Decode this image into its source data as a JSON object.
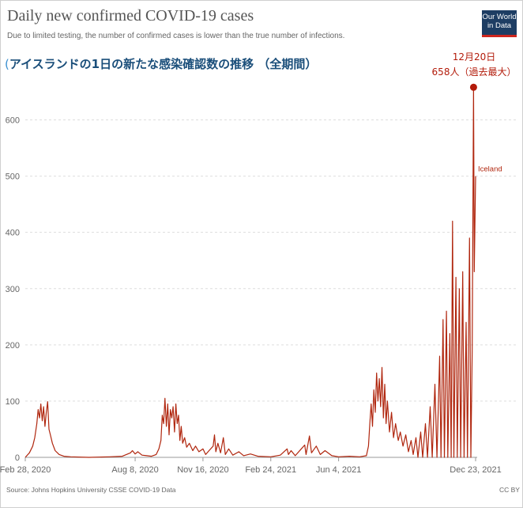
{
  "header": {
    "title": "Daily new confirmed COVID-19 cases",
    "subtitle": "Due to limited testing, the number of confirmed cases is lower than the true number of infections.",
    "logo_line1": "Our World",
    "logo_line2": "in Data"
  },
  "annotation_title": {
    "paren": "(",
    "text": "アイスランドの1日の新たな感染確認数の推移 （全期間）"
  },
  "peak_callout": {
    "date": "12月20日",
    "value": "658人（過去最大）"
  },
  "footer": {
    "source": "Source: Johns Hopkins University CSSE COVID-19 Data",
    "license": "CC BY"
  },
  "colors": {
    "series": "#b0260e",
    "grid": "#dddddd",
    "axis_text": "#666666",
    "annotation": "#b31b0a"
  },
  "chart_data": {
    "type": "line",
    "title": "Daily new confirmed COVID-19 cases",
    "xlabel": "",
    "ylabel": "",
    "ylim": [
      0,
      650
    ],
    "yticks": [
      0,
      100,
      200,
      300,
      400,
      500,
      600
    ],
    "xticks": [
      "Feb 28, 2020",
      "Aug 8, 2020",
      "Nov 16, 2020",
      "Feb 24, 2021",
      "Jun 4, 2021",
      "Dec 23, 2021"
    ],
    "grid": true,
    "series": [
      {
        "name": "Iceland",
        "color": "#b0260e",
        "points": [
          [
            "Feb 28, 2020",
            0
          ],
          [
            "Mar 5, 2020",
            8
          ],
          [
            "Mar 10, 2020",
            20
          ],
          [
            "Mar 13, 2020",
            35
          ],
          [
            "Mar 16, 2020",
            60
          ],
          [
            "Mar 18, 2020",
            85
          ],
          [
            "Mar 20, 2020",
            70
          ],
          [
            "Mar 22, 2020",
            95
          ],
          [
            "Mar 24, 2020",
            65
          ],
          [
            "Mar 26, 2020",
            90
          ],
          [
            "Mar 28, 2020",
            55
          ],
          [
            "Mar 30, 2020",
            80
          ],
          [
            "Apr 1, 2020",
            99
          ],
          [
            "Apr 3, 2020",
            50
          ],
          [
            "Apr 5, 2020",
            40
          ],
          [
            "Apr 8, 2020",
            25
          ],
          [
            "Apr 12, 2020",
            12
          ],
          [
            "Apr 18, 2020",
            5
          ],
          [
            "Apr 25, 2020",
            2
          ],
          [
            "May 5, 2020",
            1
          ],
          [
            "Jun 1, 2020",
            0
          ],
          [
            "Jul 1, 2020",
            1
          ],
          [
            "Jul 20, 2020",
            2
          ],
          [
            "Aug 1, 2020",
            8
          ],
          [
            "Aug 4, 2020",
            12
          ],
          [
            "Aug 8, 2020",
            6
          ],
          [
            "Aug 12, 2020",
            10
          ],
          [
            "Aug 18, 2020",
            4
          ],
          [
            "Aug 25, 2020",
            3
          ],
          [
            "Sep 1, 2020",
            2
          ],
          [
            "Sep 8, 2020",
            5
          ],
          [
            "Sep 12, 2020",
            15
          ],
          [
            "Sep 15, 2020",
            30
          ],
          [
            "Sep 17, 2020",
            75
          ],
          [
            "Sep 19, 2020",
            60
          ],
          [
            "Sep 21, 2020",
            105
          ],
          [
            "Sep 23, 2020",
            55
          ],
          [
            "Sep 25, 2020",
            95
          ],
          [
            "Sep 27, 2020",
            40
          ],
          [
            "Sep 29, 2020",
            85
          ],
          [
            "Oct 1, 2020",
            70
          ],
          [
            "Oct 3, 2020",
            90
          ],
          [
            "Oct 5, 2020",
            45
          ],
          [
            "Oct 7, 2020",
            95
          ],
          [
            "Oct 9, 2020",
            60
          ],
          [
            "Oct 11, 2020",
            75
          ],
          [
            "Oct 13, 2020",
            30
          ],
          [
            "Oct 15, 2020",
            55
          ],
          [
            "Oct 17, 2020",
            25
          ],
          [
            "Oct 20, 2020",
            35
          ],
          [
            "Oct 23, 2020",
            18
          ],
          [
            "Oct 27, 2020",
            25
          ],
          [
            "Nov 1, 2020",
            12
          ],
          [
            "Nov 5, 2020",
            20
          ],
          [
            "Nov 10, 2020",
            10
          ],
          [
            "Nov 16, 2020",
            15
          ],
          [
            "Nov 20, 2020",
            5
          ],
          [
            "Nov 25, 2020",
            12
          ],
          [
            "Dec 1, 2020",
            20
          ],
          [
            "Dec 3, 2020",
            40
          ],
          [
            "Dec 5, 2020",
            10
          ],
          [
            "Dec 8, 2020",
            25
          ],
          [
            "Dec 12, 2020",
            8
          ],
          [
            "Dec 16, 2020",
            35
          ],
          [
            "Dec 19, 2020",
            5
          ],
          [
            "Dec 24, 2020",
            15
          ],
          [
            "Dec 30, 2020",
            4
          ],
          [
            "Jan 8, 2021",
            10
          ],
          [
            "Jan 15, 2021",
            3
          ],
          [
            "Jan 25, 2021",
            6
          ],
          [
            "Feb 5, 2021",
            2
          ],
          [
            "Feb 24, 2021",
            1
          ],
          [
            "Mar 10, 2021",
            4
          ],
          [
            "Mar 20, 2021",
            15
          ],
          [
            "Mar 22, 2021",
            5
          ],
          [
            "Mar 26, 2021",
            12
          ],
          [
            "Apr 1, 2021",
            3
          ],
          [
            "Apr 15, 2021",
            22
          ],
          [
            "Apr 17, 2021",
            5
          ],
          [
            "Apr 22, 2021",
            38
          ],
          [
            "Apr 25, 2021",
            8
          ],
          [
            "May 2, 2021",
            20
          ],
          [
            "May 8, 2021",
            5
          ],
          [
            "May 15, 2021",
            12
          ],
          [
            "May 25, 2021",
            3
          ],
          [
            "Jun 4, 2021",
            1
          ],
          [
            "Jun 20, 2021",
            2
          ],
          [
            "Jul 5, 2021",
            1
          ],
          [
            "Jul 15, 2021",
            3
          ],
          [
            "Jul 18, 2021",
            20
          ],
          [
            "Jul 20, 2021",
            60
          ],
          [
            "Jul 22, 2021",
            95
          ],
          [
            "Jul 24, 2021",
            55
          ],
          [
            "Jul 26, 2021",
            120
          ],
          [
            "Jul 28, 2021",
            80
          ],
          [
            "Jul 30, 2021",
            150
          ],
          [
            "Aug 1, 2021",
            100
          ],
          [
            "Aug 3, 2021",
            140
          ],
          [
            "Aug 5, 2021",
            90
          ],
          [
            "Aug 7, 2021",
            160
          ],
          [
            "Aug 9, 2021",
            70
          ],
          [
            "Aug 11, 2021",
            130
          ],
          [
            "Aug 13, 2021",
            60
          ],
          [
            "Aug 15, 2021",
            100
          ],
          [
            "Aug 18, 2021",
            45
          ],
          [
            "Aug 21, 2021",
            80
          ],
          [
            "Aug 24, 2021",
            35
          ],
          [
            "Aug 27, 2021",
            60
          ],
          [
            "Aug 31, 2021",
            30
          ],
          [
            "Sep 3, 2021",
            45
          ],
          [
            "Sep 7, 2021",
            20
          ],
          [
            "Sep 11, 2021",
            40
          ],
          [
            "Sep 15, 2021",
            10
          ],
          [
            "Sep 19, 2021",
            30
          ],
          [
            "Sep 22, 2021",
            5
          ],
          [
            "Sep 26, 2021",
            35
          ],
          [
            "Sep 29, 2021",
            0
          ],
          [
            "Oct 3, 2021",
            45
          ],
          [
            "Oct 6, 2021",
            0
          ],
          [
            "Oct 10, 2021",
            60
          ],
          [
            "Oct 13, 2021",
            0
          ],
          [
            "Oct 17, 2021",
            90
          ],
          [
            "Oct 20, 2021",
            0
          ],
          [
            "Oct 24, 2021",
            130
          ],
          [
            "Oct 27, 2021",
            0
          ],
          [
            "Oct 31, 2021",
            180
          ],
          [
            "Nov 2, 2021",
            0
          ],
          [
            "Nov 5, 2021",
            245
          ],
          [
            "Nov 7, 2021",
            0
          ],
          [
            "Nov 10, 2021",
            260
          ],
          [
            "Nov 12, 2021",
            0
          ],
          [
            "Nov 15, 2021",
            220
          ],
          [
            "Nov 17, 2021",
            0
          ],
          [
            "Nov 19, 2021",
            420
          ],
          [
            "Nov 21, 2021",
            0
          ],
          [
            "Nov 24, 2021",
            320
          ],
          [
            "Nov 26, 2021",
            0
          ],
          [
            "Nov 29, 2021",
            300
          ],
          [
            "Dec 1, 2021",
            0
          ],
          [
            "Dec 4, 2021",
            330
          ],
          [
            "Dec 6, 2021",
            0
          ],
          [
            "Dec 9, 2021",
            240
          ],
          [
            "Dec 11, 2021",
            0
          ],
          [
            "Dec 14, 2021",
            390
          ],
          [
            "Dec 16, 2021",
            0
          ],
          [
            "Dec 18, 2021",
            190
          ],
          [
            "Dec 20, 2021",
            658
          ],
          [
            "Dec 21, 2021",
            330
          ],
          [
            "Dec 23, 2021",
            500
          ]
        ]
      }
    ],
    "series_label": "Iceland",
    "peak": {
      "date": "Dec 20, 2021",
      "value": 658
    }
  }
}
